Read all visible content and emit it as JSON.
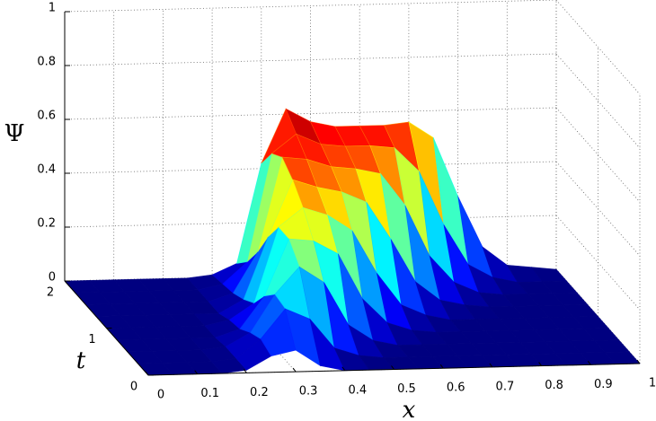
{
  "chart_data": {
    "type": "surface",
    "xlabel": "x",
    "ylabel": "t",
    "zlabel": "Ψ",
    "x": [
      0,
      0.05,
      0.1,
      0.15,
      0.2,
      0.25,
      0.3,
      0.35,
      0.4,
      0.45,
      0.5,
      0.55,
      0.6,
      0.65,
      0.7,
      0.75,
      0.8,
      0.85,
      0.9,
      0.95,
      1
    ],
    "t": [
      0,
      0.25,
      0.5,
      0.75,
      1,
      1.25,
      1.5,
      1.75,
      2
    ],
    "z": [
      [
        0,
        0,
        0,
        0,
        0.01,
        0.06,
        0.08,
        0.02,
        0,
        0,
        0,
        0,
        0,
        0,
        0,
        0,
        0,
        0,
        0,
        0,
        0
      ],
      [
        0,
        0,
        0,
        0,
        0.01,
        0.08,
        0.19,
        0.15,
        0.04,
        0.01,
        0,
        0,
        0,
        0,
        0,
        0,
        0,
        0,
        0,
        0,
        0
      ],
      [
        0,
        0,
        0,
        0,
        0.01,
        0.06,
        0.2,
        0.3,
        0.24,
        0.08,
        0.02,
        0,
        0,
        0,
        0,
        0,
        0,
        0,
        0,
        0,
        0
      ],
      [
        0,
        0,
        0,
        0,
        0,
        0.03,
        0.15,
        0.36,
        0.35,
        0.3,
        0.13,
        0.04,
        0.01,
        0,
        0,
        0,
        0,
        0,
        0,
        0,
        0
      ],
      [
        0,
        0,
        0,
        0,
        0,
        0.02,
        0.08,
        0.36,
        0.43,
        0.4,
        0.34,
        0.18,
        0.06,
        0.02,
        0,
        0,
        0,
        0,
        0,
        0,
        0
      ],
      [
        0,
        0,
        0,
        0,
        0,
        0,
        0.05,
        0.28,
        0.49,
        0.46,
        0.44,
        0.4,
        0.26,
        0.1,
        0.03,
        0.01,
        0,
        0,
        0,
        0,
        0
      ],
      [
        0,
        0,
        0,
        0,
        0,
        0,
        0.03,
        0.18,
        0.53,
        0.52,
        0.49,
        0.48,
        0.46,
        0.34,
        0.15,
        0.05,
        0.01,
        0,
        0,
        0,
        0
      ],
      [
        0,
        0,
        0,
        0,
        0,
        0,
        0.02,
        0.1,
        0.5,
        0.57,
        0.53,
        0.52,
        0.52,
        0.51,
        0.42,
        0.22,
        0.07,
        0.02,
        0,
        0,
        0
      ],
      [
        0,
        0,
        0,
        0,
        0,
        0,
        0.01,
        0.05,
        0.42,
        0.62,
        0.57,
        0.55,
        0.55,
        0.55,
        0.56,
        0.5,
        0.28,
        0.09,
        0.02,
        0.01,
        0
      ]
    ],
    "xlim": [
      0,
      1
    ],
    "ylim": [
      0,
      2
    ],
    "zlim": [
      0,
      1
    ],
    "xticks": [
      0,
      0.1,
      0.2,
      0.3,
      0.4,
      0.5,
      0.6,
      0.7,
      0.8,
      0.9,
      1
    ],
    "yticks": [
      0,
      1,
      2
    ],
    "zticks": [
      0,
      0.2,
      0.4,
      0.6,
      0.8,
      1
    ],
    "grid": true,
    "colormap": "jet"
  }
}
